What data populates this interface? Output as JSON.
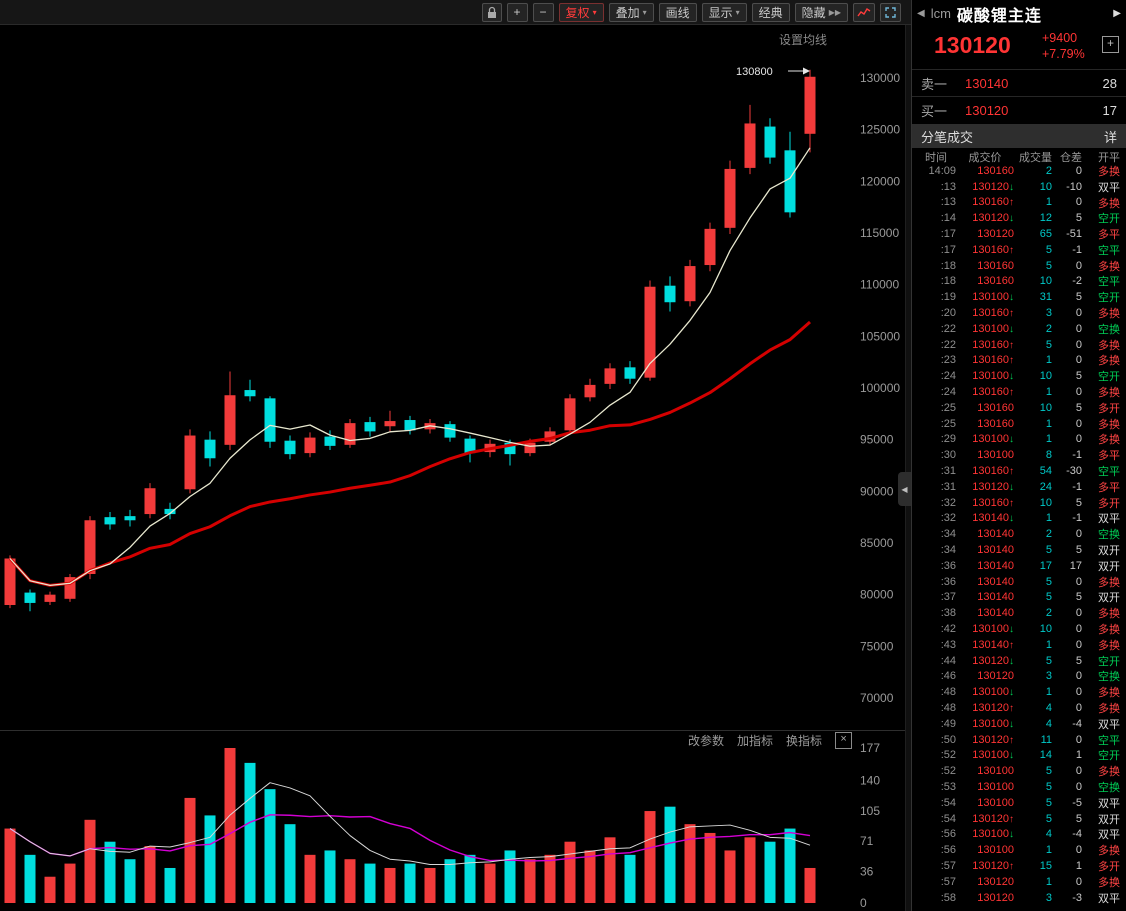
{
  "toolbar": {
    "plus": "+",
    "minus": "−",
    "fuquan": "复权",
    "diejia": "叠加",
    "huaxian": "画线",
    "xianshi": "显示",
    "jingdian": "经典",
    "yincang": "隐藏",
    "yincang_arrow": "▶▶",
    "dd": "▾"
  },
  "chart": {
    "ma_settings_label": "设置均线",
    "param_link": "改参数",
    "add_ind_link": "加指标",
    "switch_ind_link": "换指标",
    "close_glyph": "×",
    "collapse_glyph": "◀"
  },
  "chart_data": {
    "type": "candlestick",
    "title": "碳酸锂主连",
    "high_annotation": "130800",
    "price_axis": {
      "min": 70000,
      "max": 130000,
      "ticks": [
        130000,
        125000,
        120000,
        115000,
        110000,
        105000,
        100000,
        95000,
        90000,
        85000,
        80000,
        75000,
        70000
      ]
    },
    "volume_axis": {
      "max": 177,
      "ticks": [
        177,
        140,
        105,
        71,
        36,
        0
      ]
    },
    "ma_periods": {
      "short": 5,
      "long": 20
    },
    "candles": [
      [
        79000,
        83800,
        78700,
        83500,
        85
      ],
      [
        80200,
        80500,
        78400,
        79200,
        55
      ],
      [
        79300,
        80300,
        79000,
        80000,
        30
      ],
      [
        79600,
        82000,
        79300,
        81700,
        45
      ],
      [
        82000,
        87600,
        81500,
        87200,
        95
      ],
      [
        87500,
        88000,
        86300,
        86800,
        70
      ],
      [
        87600,
        88200,
        86600,
        87200,
        50
      ],
      [
        87800,
        90800,
        87400,
        90300,
        65
      ],
      [
        88300,
        88900,
        87300,
        87800,
        40
      ],
      [
        90200,
        96000,
        89800,
        95400,
        120
      ],
      [
        95000,
        95800,
        92400,
        93200,
        100
      ],
      [
        94500,
        101600,
        94000,
        99300,
        177
      ],
      [
        99800,
        100800,
        98700,
        99200,
        160
      ],
      [
        99000,
        99200,
        94200,
        94800,
        130
      ],
      [
        94900,
        95400,
        93100,
        93600,
        90
      ],
      [
        93700,
        95700,
        93300,
        95200,
        55
      ],
      [
        95300,
        95900,
        94000,
        94400,
        60
      ],
      [
        94500,
        97000,
        94200,
        96600,
        50
      ],
      [
        96700,
        97200,
        95300,
        95800,
        45
      ],
      [
        96300,
        97800,
        95700,
        96800,
        40
      ],
      [
        96900,
        97300,
        95500,
        95900,
        45
      ],
      [
        96000,
        97000,
        95600,
        96600,
        40
      ],
      [
        96500,
        96800,
        94800,
        95200,
        50
      ],
      [
        95100,
        95400,
        92800,
        93700,
        55
      ],
      [
        93800,
        95000,
        93300,
        94600,
        45
      ],
      [
        94700,
        95000,
        92500,
        93600,
        60
      ],
      [
        93700,
        95100,
        93400,
        94700,
        50
      ],
      [
        94800,
        96200,
        94500,
        95800,
        55
      ],
      [
        95900,
        99400,
        95600,
        99000,
        70
      ],
      [
        99100,
        100900,
        98700,
        100300,
        60
      ],
      [
        100400,
        102400,
        99900,
        101900,
        75
      ],
      [
        102000,
        102600,
        100400,
        100900,
        55
      ],
      [
        101000,
        110400,
        100700,
        109800,
        105
      ],
      [
        109900,
        110800,
        107400,
        108300,
        110
      ],
      [
        108400,
        112400,
        107900,
        111800,
        90
      ],
      [
        111900,
        116000,
        111300,
        115400,
        80
      ],
      [
        115500,
        122000,
        114900,
        121200,
        60
      ],
      [
        121300,
        127400,
        120700,
        125600,
        75
      ],
      [
        125300,
        126100,
        121700,
        122300,
        70
      ],
      [
        123000,
        124800,
        116500,
        117000,
        85
      ],
      [
        124600,
        130800,
        122800,
        130120,
        40
      ]
    ],
    "colors": {
      "up": "#f23b3b",
      "down": "#00dede",
      "ma_short": "#e8e8cf",
      "ma_long": "#d40000",
      "vol_ma_fast": "#d8d8d8",
      "vol_ma_slow": "#d400d4"
    }
  },
  "panel": {
    "prev_glyph": "◀",
    "next_glyph": "▶",
    "symbol_code": "lcm",
    "symbol_name": "碳酸锂主连",
    "last": "130120",
    "change": "+9400",
    "change_pct": "+7.79%",
    "add_glyph": "+",
    "sell_label": "卖一",
    "sell_price": "130140",
    "sell_qty": "28",
    "buy_label": "买一",
    "buy_price": "130120",
    "buy_qty": "17",
    "section_title": "分笔成交",
    "detail_label": "详",
    "columns": [
      "时间",
      "成交价",
      "成交量",
      "仓差",
      "开平"
    ],
    "ticks": [
      [
        "14:09",
        "130160",
        0,
        2,
        0,
        "多换"
      ],
      [
        ":13",
        "130120",
        -1,
        10,
        -10,
        "双平"
      ],
      [
        ":13",
        "130160",
        1,
        1,
        0,
        "多换"
      ],
      [
        ":14",
        "130120",
        -1,
        12,
        5,
        "空开"
      ],
      [
        ":17",
        "130120",
        0,
        65,
        -51,
        "多平"
      ],
      [
        ":17",
        "130160",
        1,
        5,
        -1,
        "空平"
      ],
      [
        ":18",
        "130160",
        0,
        5,
        0,
        "多换"
      ],
      [
        ":18",
        "130160",
        0,
        10,
        -2,
        "空平"
      ],
      [
        ":19",
        "130100",
        -1,
        31,
        5,
        "空开"
      ],
      [
        ":20",
        "130160",
        1,
        3,
        0,
        "多换"
      ],
      [
        ":22",
        "130100",
        -1,
        2,
        0,
        "空换"
      ],
      [
        ":22",
        "130160",
        1,
        5,
        0,
        "多换"
      ],
      [
        ":23",
        "130160",
        1,
        1,
        0,
        "多换"
      ],
      [
        ":24",
        "130100",
        -1,
        10,
        5,
        "空开"
      ],
      [
        ":24",
        "130160",
        1,
        1,
        0,
        "多换"
      ],
      [
        ":25",
        "130160",
        0,
        10,
        5,
        "多开"
      ],
      [
        ":25",
        "130160",
        0,
        1,
        0,
        "多换"
      ],
      [
        ":29",
        "130100",
        -1,
        1,
        0,
        "多换"
      ],
      [
        ":30",
        "130100",
        0,
        8,
        -1,
        "多平"
      ],
      [
        ":31",
        "130160",
        1,
        54,
        -30,
        "空平"
      ],
      [
        ":31",
        "130120",
        -1,
        24,
        -1,
        "多平"
      ],
      [
        ":32",
        "130160",
        1,
        10,
        5,
        "多开"
      ],
      [
        ":32",
        "130140",
        -1,
        1,
        -1,
        "双平"
      ],
      [
        ":34",
        "130140",
        0,
        2,
        0,
        "空换"
      ],
      [
        ":34",
        "130140",
        0,
        5,
        5,
        "双开"
      ],
      [
        ":36",
        "130140",
        0,
        17,
        17,
        "双开"
      ],
      [
        ":36",
        "130140",
        0,
        5,
        0,
        "多换"
      ],
      [
        ":37",
        "130140",
        0,
        5,
        5,
        "双开"
      ],
      [
        ":38",
        "130140",
        0,
        2,
        0,
        "多换"
      ],
      [
        ":42",
        "130100",
        -1,
        10,
        0,
        "多换"
      ],
      [
        ":43",
        "130140",
        1,
        1,
        0,
        "多换"
      ],
      [
        ":44",
        "130120",
        -1,
        5,
        5,
        "空开"
      ],
      [
        ":46",
        "130120",
        0,
        3,
        0,
        "空换"
      ],
      [
        ":48",
        "130100",
        -1,
        1,
        0,
        "多换"
      ],
      [
        ":48",
        "130120",
        1,
        4,
        0,
        "多换"
      ],
      [
        ":49",
        "130100",
        -1,
        4,
        -4,
        "双平"
      ],
      [
        ":50",
        "130120",
        1,
        11,
        0,
        "空平"
      ],
      [
        ":52",
        "130100",
        -1,
        14,
        1,
        "空开"
      ],
      [
        ":52",
        "130100",
        0,
        5,
        0,
        "多换"
      ],
      [
        ":53",
        "130100",
        0,
        5,
        0,
        "空换"
      ],
      [
        ":54",
        "130100",
        0,
        5,
        -5,
        "双平"
      ],
      [
        ":54",
        "130120",
        1,
        5,
        5,
        "双开"
      ],
      [
        ":56",
        "130100",
        -1,
        4,
        -4,
        "双平"
      ],
      [
        ":56",
        "130100",
        0,
        1,
        0,
        "多换"
      ],
      [
        ":57",
        "130120",
        1,
        15,
        1,
        "多开"
      ],
      [
        ":57",
        "130120",
        0,
        1,
        0,
        "多换"
      ],
      [
        ":58",
        "130120",
        0,
        3,
        -3,
        "双平"
      ]
    ]
  }
}
